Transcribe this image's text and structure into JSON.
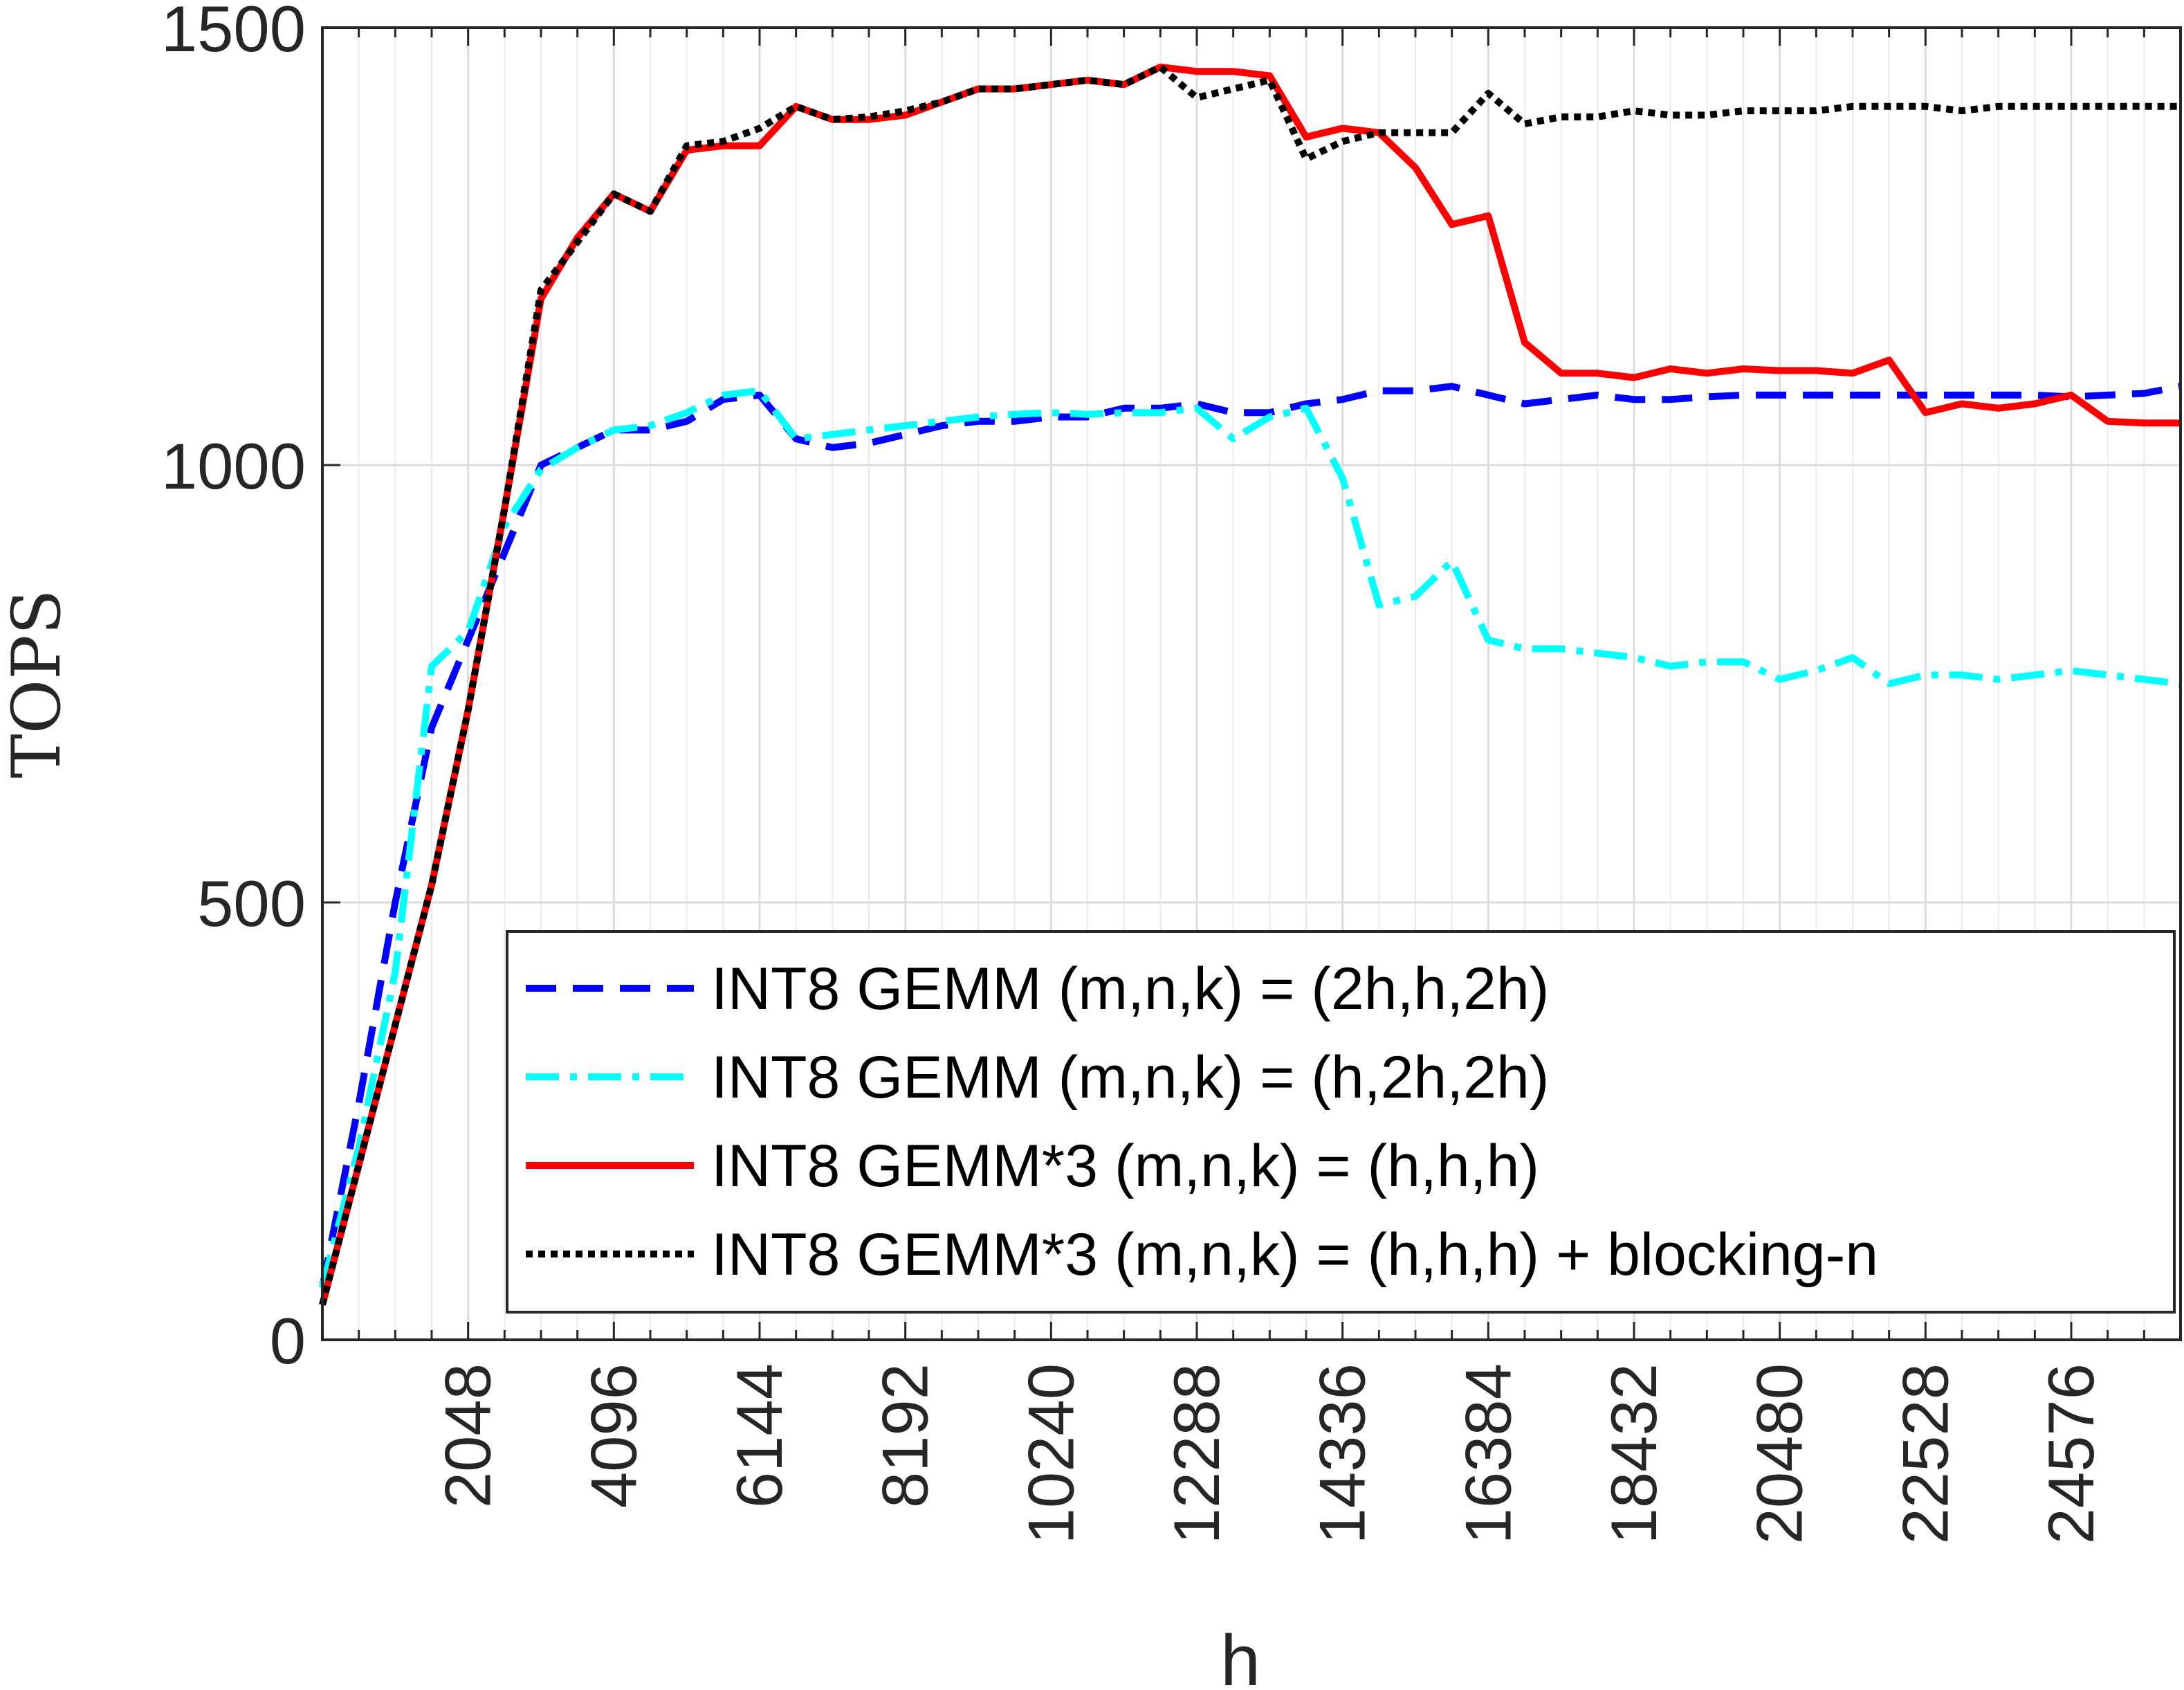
{
  "chart_data": {
    "type": "line",
    "title": "",
    "xlabel": "h",
    "ylabel": "TOPS",
    "xlim": [
      0,
      26112
    ],
    "ylim": [
      0,
      1500
    ],
    "grid": true,
    "x_minor_step": 512,
    "xticks": [
      2048,
      4096,
      6144,
      8192,
      10240,
      12288,
      14336,
      16384,
      18432,
      20480,
      22528,
      24576
    ],
    "xtick_labels": [
      "2048",
      "4096",
      "6144",
      "8192",
      "10240",
      "12288",
      "14336",
      "16384",
      "18432",
      "20480",
      "22528",
      "24576"
    ],
    "yticks": [
      0,
      500,
      1000,
      1500
    ],
    "ytick_labels": [
      "0",
      "500",
      "1000",
      "1500"
    ],
    "legend_position": "lower-right",
    "x": [
      0,
      512,
      1024,
      1536,
      2048,
      2560,
      3072,
      3584,
      4096,
      4608,
      5120,
      5632,
      6144,
      6656,
      7168,
      7680,
      8192,
      8704,
      9216,
      9728,
      10240,
      10752,
      11264,
      11776,
      12288,
      12800,
      13312,
      13824,
      14336,
      14848,
      15360,
      15872,
      16384,
      16896,
      17408,
      17920,
      18432,
      18944,
      19456,
      19968,
      20480,
      20992,
      21504,
      22016,
      22528,
      23040,
      23552,
      24064,
      24576,
      25088,
      25600,
      26112
    ],
    "series": [
      {
        "name": "INT8 GEMM (m,n,k) = (2h,h,2h)",
        "color": "#0000ff",
        "dash": "dashed",
        "values": [
          60,
          270,
          500,
          700,
          800,
          900,
          1000,
          1020,
          1040,
          1040,
          1050,
          1075,
          1080,
          1030,
          1020,
          1025,
          1035,
          1045,
          1050,
          1050,
          1055,
          1055,
          1065,
          1065,
          1070,
          1060,
          1060,
          1070,
          1075,
          1085,
          1085,
          1090,
          1080,
          1070,
          1075,
          1080,
          1075,
          1075,
          1078,
          1080,
          1080,
          1080,
          1080,
          1080,
          1080,
          1080,
          1080,
          1080,
          1078,
          1080,
          1082,
          1090
        ]
      },
      {
        "name": "INT8 GEMM (m,n,k) = (h,2h,2h)",
        "color": "#00ffff",
        "dash": "dashdot",
        "values": [
          60,
          220,
          420,
          770,
          810,
          930,
          995,
          1020,
          1040,
          1045,
          1060,
          1080,
          1085,
          1030,
          1035,
          1040,
          1045,
          1050,
          1055,
          1058,
          1060,
          1058,
          1060,
          1060,
          1065,
          1030,
          1055,
          1065,
          985,
          840,
          850,
          890,
          800,
          790,
          790,
          785,
          780,
          770,
          775,
          775,
          755,
          765,
          780,
          750,
          760,
          760,
          755,
          760,
          765,
          760,
          755,
          750
        ]
      },
      {
        "name": "INT8 GEMM*3 (m,n,k) = (h,h,h)",
        "color": "#ff0000",
        "dash": "solid",
        "values": [
          40,
          200,
          360,
          520,
          720,
          950,
          1190,
          1260,
          1310,
          1290,
          1360,
          1365,
          1365,
          1410,
          1395,
          1395,
          1400,
          1415,
          1430,
          1430,
          1435,
          1440,
          1435,
          1455,
          1450,
          1450,
          1445,
          1375,
          1385,
          1380,
          1340,
          1275,
          1285,
          1140,
          1105,
          1105,
          1100,
          1110,
          1105,
          1110,
          1108,
          1108,
          1105,
          1120,
          1060,
          1070,
          1065,
          1070,
          1080,
          1050,
          1048,
          1048
        ]
      },
      {
        "name": "INT8 GEMM*3 (m,n,k) = (h,h,h) + blocking-n",
        "color": "#000000",
        "dash": "dotted",
        "values": [
          40,
          200,
          360,
          520,
          720,
          950,
          1200,
          1255,
          1310,
          1290,
          1365,
          1370,
          1385,
          1410,
          1395,
          1398,
          1405,
          1415,
          1430,
          1430,
          1435,
          1440,
          1435,
          1455,
          1420,
          1430,
          1440,
          1350,
          1370,
          1380,
          1380,
          1380,
          1425,
          1390,
          1398,
          1398,
          1405,
          1400,
          1400,
          1405,
          1405,
          1405,
          1410,
          1410,
          1410,
          1405,
          1410,
          1410,
          1410,
          1410,
          1410,
          1410
        ]
      }
    ]
  }
}
